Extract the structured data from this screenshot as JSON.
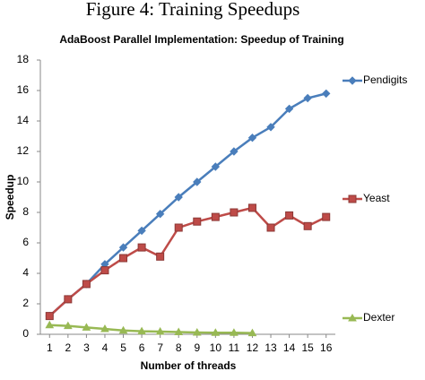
{
  "caption": "Figure 4: Training Speedups",
  "chart_data": {
    "type": "line",
    "title": "AdaBoost Parallel Implementation: Speedup of Training",
    "x_label": "Number of threads",
    "y_label": "Speedup",
    "x": [
      1,
      2,
      3,
      4,
      5,
      6,
      7,
      8,
      9,
      10,
      11,
      12,
      13,
      14,
      15,
      16
    ],
    "xlim": [
      0.5,
      16.5
    ],
    "xticks": [
      1,
      2,
      3,
      4,
      5,
      6,
      7,
      8,
      9,
      10,
      11,
      12,
      13,
      14,
      15,
      16
    ],
    "ylim": [
      0,
      18
    ],
    "yticks": [
      0,
      2,
      4,
      6,
      8,
      10,
      12,
      14,
      16,
      18
    ],
    "grid": false,
    "legend": "right",
    "series": [
      {
        "name": "Pendigits",
        "color": "#4a7ebb",
        "marker": "diamond",
        "values": [
          1.2,
          2.3,
          3.3,
          4.6,
          5.7,
          6.8,
          7.9,
          9.0,
          10.0,
          11.0,
          12.0,
          12.9,
          13.6,
          14.8,
          15.5,
          15.8
        ]
      },
      {
        "name": "Yeast",
        "color": "#be4b48",
        "marker": "square",
        "values": [
          1.2,
          2.3,
          3.3,
          4.2,
          5.0,
          5.7,
          5.1,
          7.0,
          7.4,
          7.7,
          8.0,
          8.3,
          7.0,
          7.8,
          7.1,
          7.7
        ]
      },
      {
        "name": "Dexter",
        "color": "#98b954",
        "marker": "triangle",
        "values": [
          0.6,
          0.55,
          0.45,
          0.35,
          0.25,
          0.2,
          0.18,
          0.15,
          0.12,
          0.1,
          0.1,
          0.08,
          null,
          null,
          null,
          null
        ]
      }
    ]
  }
}
